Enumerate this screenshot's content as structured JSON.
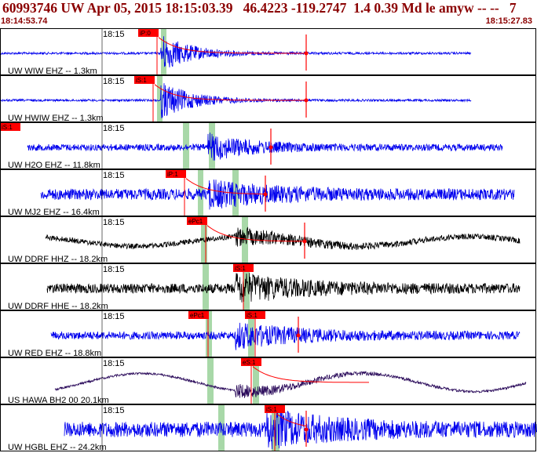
{
  "header": {
    "title": "60993746 UW Apr 05, 2015 18:15:03.39   46.4223 -119.2747  1.4 0.39 Md le amyw -- --   7",
    "time_start": "18:14:53.74",
    "time_end": "18:15:27.83"
  },
  "colors": {
    "header_text": "#8b0000",
    "blue_trace": "#0000ee",
    "black_trace": "#000000",
    "purple_trace": "#2a0a5a",
    "pick_marker": "#ff0000",
    "pick_window": "#a8d8a8",
    "panel_border": "#000000"
  },
  "traces": [
    {
      "id": "WIW",
      "label": "UW WIW EHZ -- 1.3km",
      "tick": "18:15",
      "pick1": "iP:0",
      "pick2": null,
      "color": "blue_trace",
      "onset": "early",
      "noise": 0.05,
      "amp": 0.85,
      "decay": "fast"
    },
    {
      "id": "HWIW",
      "label": "UW HWIW EHZ -- 1.3km",
      "tick": "18:15",
      "pick1": "iS:1",
      "pick2": null,
      "color": "blue_trace",
      "onset": "early",
      "noise": 0.05,
      "amp": 0.85,
      "decay": "fast"
    },
    {
      "id": "H2O",
      "label": "UW H2O EHZ -- 11.8km",
      "tick": "18:15",
      "pick1": "iS:1",
      "pick2": null,
      "color": "blue_trace",
      "onset": "mid",
      "noise": 0.15,
      "amp": 0.55,
      "decay": "mid"
    },
    {
      "id": "MJ2",
      "label": "UW MJ2 EHZ -- 16.4km",
      "tick": "18:15",
      "pick1": "iP:1",
      "pick2": null,
      "color": "blue_trace",
      "onset": "mid",
      "noise": 0.25,
      "amp": 0.5,
      "decay": "slow"
    },
    {
      "id": "DDRFHHZ",
      "label": "UW DDRF HHZ -- 18.2km",
      "tick": "18:15",
      "pick1": "ePc1",
      "pick2": null,
      "color": "black_trace",
      "onset": "late",
      "noise": 0.12,
      "amp": 0.35,
      "decay": "slow",
      "wave": 0.4
    },
    {
      "id": "DDRFHHE",
      "label": "UW DDRF HHE -- 18.2km",
      "tick": "18:15",
      "pick1": null,
      "pick2": "iS:1",
      "color": "black_trace",
      "onset": "late",
      "noise": 0.22,
      "amp": 0.6,
      "decay": "slow"
    },
    {
      "id": "RED",
      "label": "UW RED EHZ -- 18.8km",
      "tick": "18:15",
      "pick1": "ePc1",
      "pick2": "iS:1",
      "color": "blue_trace",
      "onset": "late",
      "noise": 0.18,
      "amp": 0.5,
      "decay": "slow"
    },
    {
      "id": "HAWA",
      "label": "US HAWA BH2 00 20.1km",
      "tick": "18:15",
      "pick1": null,
      "pick2": "eS:1",
      "color": "purple_trace",
      "onset": "late",
      "noise": 0.05,
      "amp": 0.3,
      "decay": "slow",
      "wave": 0.75
    },
    {
      "id": "HGBL",
      "label": "UW HGBL EHZ -- 24.2km",
      "tick": "18:15",
      "pick1": null,
      "pick2": "iS:1",
      "color": "blue_trace",
      "onset": "latest",
      "noise": 0.35,
      "amp": 0.7,
      "decay": "slow"
    }
  ]
}
